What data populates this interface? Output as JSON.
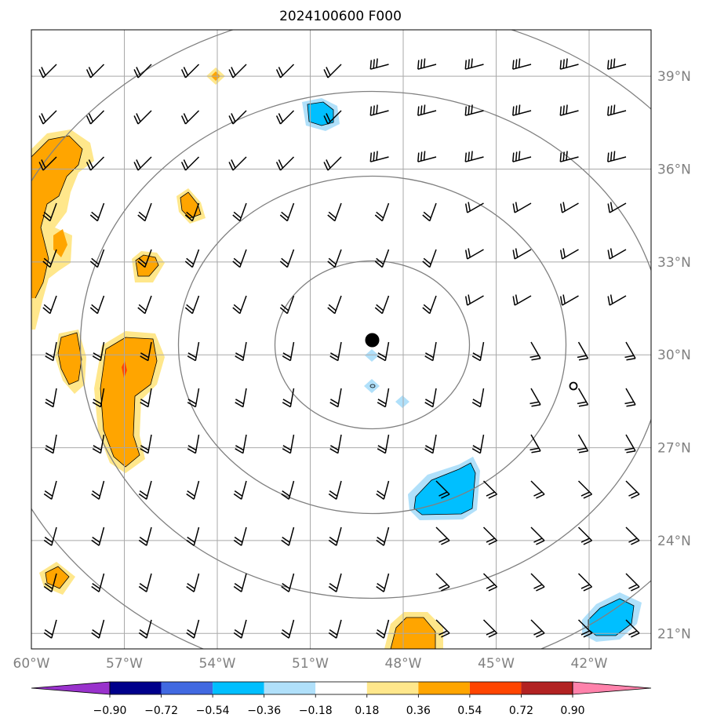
{
  "title": "2024100600 F000",
  "lon_labels": [
    "60°W",
    "57°W",
    "54°W",
    "51°W",
    "48°W",
    "45°W",
    "42°W"
  ],
  "lat_labels": [
    "21°N",
    "24°N",
    "27°N",
    "30°N",
    "33°N",
    "36°N",
    "39°N"
  ],
  "lon_values": [
    -60,
    -57,
    -54,
    -51,
    -48,
    -45,
    -42
  ],
  "lat_values": [
    21,
    24,
    27,
    30,
    33,
    36,
    39
  ],
  "extent": {
    "lon_min": -60,
    "lon_max": -40,
    "lat_min": 20.5,
    "lat_max": 40.5
  },
  "center": {
    "lon": -49.0,
    "lat": 30.5
  },
  "colorbar": {
    "tick_labels": [
      "−0.90",
      "−0.72",
      "−0.54",
      "−0.36",
      "−0.18",
      "0.18",
      "0.36",
      "0.54",
      "0.72",
      "0.90"
    ],
    "levels": [
      -0.9,
      -0.72,
      -0.54,
      -0.36,
      -0.18,
      0.18,
      0.36,
      0.54,
      0.72,
      0.9
    ],
    "colors": [
      "#9932cc",
      "#00008b",
      "#4169e1",
      "#00bfff",
      "#b0e0fa",
      "#ffffff",
      "#ffe78b",
      "#ffa500",
      "#ff4500",
      "#b22222",
      "#ff82ab"
    ]
  },
  "colors": {
    "grid": "#a9a9a9",
    "rings": "#808080",
    "barb": "#000000",
    "center_marker": "#000000"
  }
}
